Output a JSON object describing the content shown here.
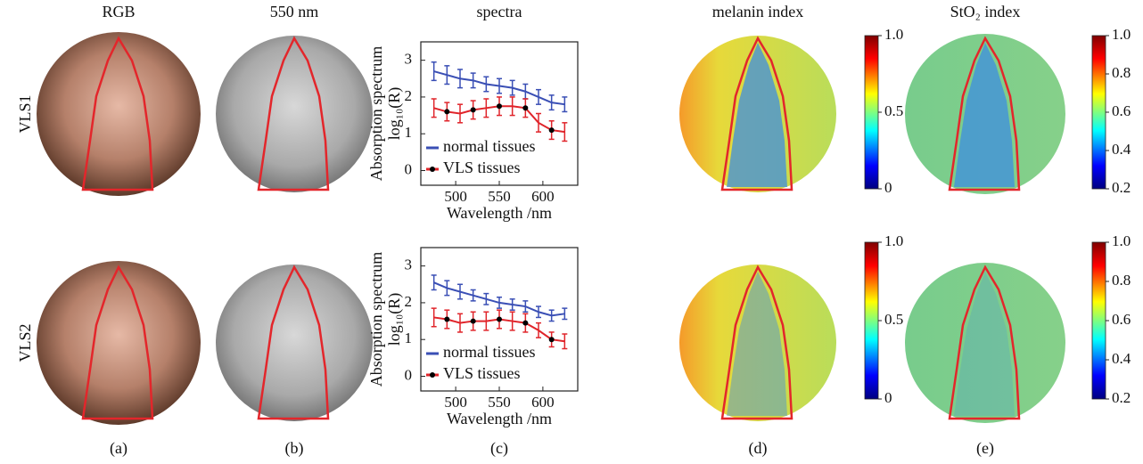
{
  "columns": [
    "RGB",
    "550 nm",
    "spectra",
    "melanin index",
    "StO₂ index"
  ],
  "rows": [
    "VLS1",
    "VLS2"
  ],
  "panel_labels": [
    "(a)",
    "(b)",
    "(c)",
    "(d)",
    "(e)"
  ],
  "chart_data": [
    {
      "type": "line",
      "x_label": "Wavelength /nm",
      "y_label": "Absorption spectrum",
      "y_label_2": "log₁₀(R)",
      "xlim": [
        460,
        640
      ],
      "xticks": [
        500,
        550,
        600
      ],
      "ylim": [
        -0.4,
        3.5
      ],
      "yticks": [
        0,
        1,
        2,
        3
      ],
      "legend": "lower left",
      "series": [
        {
          "name": "normal tissues",
          "color": "#3a4fb5",
          "marker": false,
          "x": [
            475,
            490,
            505,
            520,
            535,
            550,
            565,
            580,
            595,
            610,
            625
          ],
          "values": [
            2.7,
            2.6,
            2.5,
            2.45,
            2.35,
            2.3,
            2.25,
            2.15,
            2.0,
            1.85,
            1.8
          ],
          "errors": [
            0.25,
            0.25,
            0.25,
            0.2,
            0.2,
            0.2,
            0.2,
            0.2,
            0.2,
            0.2,
            0.2
          ]
        },
        {
          "name": "VLS tissues",
          "color": "#e0242a",
          "marker": true,
          "x": [
            475,
            490,
            505,
            520,
            535,
            550,
            565,
            580,
            595,
            610,
            625
          ],
          "values": [
            1.7,
            1.6,
            1.55,
            1.65,
            1.7,
            1.75,
            1.75,
            1.7,
            1.3,
            1.1,
            1.05
          ],
          "errors": [
            0.25,
            0.25,
            0.25,
            0.25,
            0.25,
            0.25,
            0.25,
            0.25,
            0.25,
            0.25,
            0.25
          ]
        }
      ]
    },
    {
      "type": "line",
      "x_label": "Wavelength /nm",
      "y_label": "Absorption spectrum",
      "y_label_2": "log₁₀(R)",
      "xlim": [
        460,
        640
      ],
      "xticks": [
        500,
        550,
        600
      ],
      "ylim": [
        -0.4,
        3.5
      ],
      "yticks": [
        0,
        1,
        2,
        3
      ],
      "legend": "lower left",
      "series": [
        {
          "name": "normal tissues",
          "color": "#3a4fb5",
          "marker": false,
          "x": [
            475,
            490,
            505,
            520,
            535,
            550,
            565,
            580,
            595,
            610,
            625
          ],
          "values": [
            2.55,
            2.4,
            2.3,
            2.2,
            2.1,
            2.0,
            1.95,
            1.9,
            1.75,
            1.65,
            1.7
          ],
          "errors": [
            0.2,
            0.2,
            0.2,
            0.15,
            0.15,
            0.15,
            0.15,
            0.15,
            0.15,
            0.15,
            0.15
          ]
        },
        {
          "name": "VLS tissues",
          "color": "#e0242a",
          "marker": true,
          "x": [
            475,
            490,
            505,
            520,
            535,
            550,
            565,
            580,
            595,
            610,
            625
          ],
          "values": [
            1.6,
            1.55,
            1.45,
            1.5,
            1.5,
            1.55,
            1.5,
            1.45,
            1.25,
            1.0,
            0.95
          ],
          "errors": [
            0.25,
            0.25,
            0.25,
            0.25,
            0.25,
            0.25,
            0.25,
            0.25,
            0.2,
            0.2,
            0.2
          ]
        }
      ]
    }
  ],
  "colorbars": [
    {
      "lim": [
        0,
        1
      ],
      "ticks": [
        0,
        0.5,
        {
          "value": 1,
          "label": "1.0"
        }
      ]
    },
    {
      "lim": [
        0.2,
        1
      ],
      "ticks": [
        0.2,
        0.4,
        0.6,
        0.8,
        {
          "value": 1,
          "label": "1.0"
        }
      ]
    }
  ]
}
